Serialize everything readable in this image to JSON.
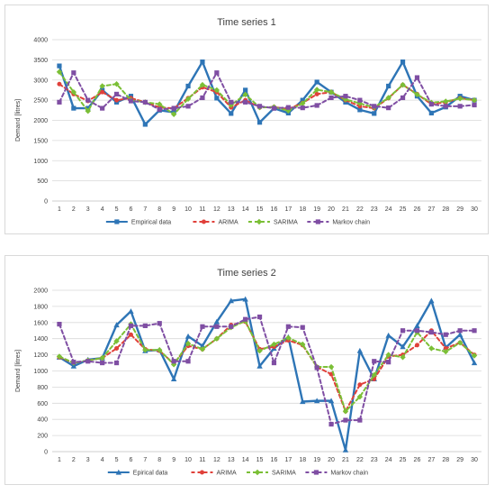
{
  "colors": {
    "empirical": "#2e75b6",
    "arima": "#e0403a",
    "sarima": "#7bbf36",
    "markov": "#7f4ea3",
    "grid": "#d9d9d9",
    "text": "#404040"
  },
  "chart_data": [
    {
      "type": "line",
      "title": "Time series 1",
      "xlabel": "",
      "ylabel": "Demand [litres]",
      "ylim": [
        0,
        4000
      ],
      "yticks": [
        "0",
        "500",
        "1000",
        "1500",
        "2000",
        "2500",
        "3000",
        "3500",
        "4000"
      ],
      "grid": true,
      "legend_position": "bottom",
      "categories": [
        "1",
        "2",
        "3",
        "4",
        "5",
        "6",
        "7",
        "8",
        "9",
        "10",
        "11",
        "12",
        "13",
        "14",
        "15",
        "16",
        "17",
        "18",
        "19",
        "20",
        "21",
        "22",
        "23",
        "24",
        "25",
        "26",
        "27",
        "28",
        "29",
        "30"
      ],
      "series": [
        {
          "name": "Empirical data",
          "color_key": "empirical",
          "marker": "square",
          "dash": false,
          "values": [
            3350,
            2300,
            2300,
            2750,
            2450,
            2600,
            1900,
            2250,
            2200,
            2850,
            3450,
            2550,
            2170,
            2750,
            1950,
            2300,
            2180,
            2500,
            2950,
            2700,
            2450,
            2260,
            2170,
            2850,
            3450,
            2600,
            2180,
            2330,
            2600,
            2500
          ]
        },
        {
          "name": "ARIMA",
          "color_key": "arima",
          "marker": "circle",
          "dash": true,
          "values": [
            2900,
            2650,
            2480,
            2700,
            2500,
            2550,
            2450,
            2320,
            2300,
            2550,
            2820,
            2700,
            2320,
            2500,
            2320,
            2330,
            2280,
            2430,
            2650,
            2700,
            2500,
            2350,
            2300,
            2550,
            2880,
            2650,
            2400,
            2450,
            2550,
            2500
          ]
        },
        {
          "name": "SARIMA",
          "color_key": "sarima",
          "marker": "diamond",
          "dash": true,
          "values": [
            3200,
            2700,
            2230,
            2850,
            2900,
            2500,
            2450,
            2400,
            2150,
            2530,
            2880,
            2750,
            2380,
            2640,
            2320,
            2330,
            2240,
            2420,
            2760,
            2700,
            2520,
            2420,
            2320,
            2560,
            2880,
            2640,
            2440,
            2470,
            2540,
            2500
          ]
        },
        {
          "name": "Markov chain",
          "color_key": "markov",
          "marker": "square",
          "dash": true,
          "values": [
            2450,
            3180,
            2500,
            2300,
            2650,
            2480,
            2450,
            2270,
            2300,
            2350,
            2560,
            3180,
            2450,
            2450,
            2350,
            2300,
            2320,
            2310,
            2370,
            2560,
            2600,
            2500,
            2350,
            2310,
            2560,
            3060,
            2400,
            2350,
            2350,
            2380
          ]
        }
      ]
    },
    {
      "type": "line",
      "title": "Time series 2",
      "xlabel": "",
      "ylabel": "Demand [litres]",
      "ylim": [
        0,
        2000
      ],
      "yticks": [
        "0",
        "200",
        "400",
        "600",
        "800",
        "1000",
        "1200",
        "1400",
        "1600",
        "1800",
        "2000"
      ],
      "grid": true,
      "legend_position": "bottom",
      "categories": [
        "1",
        "2",
        "3",
        "4",
        "5",
        "6",
        "7",
        "8",
        "9",
        "10",
        "11",
        "12",
        "13",
        "14",
        "15",
        "16",
        "17",
        "18",
        "19",
        "20",
        "21",
        "22",
        "23",
        "24",
        "25",
        "26",
        "27",
        "28",
        "29",
        "30"
      ],
      "series": [
        {
          "name": "Epirical data",
          "color_key": "empirical",
          "marker": "triangle",
          "dash": false,
          "values": [
            1170,
            1060,
            1140,
            1160,
            1570,
            1740,
            1250,
            1260,
            900,
            1430,
            1310,
            1610,
            1870,
            1890,
            1060,
            1280,
            1420,
            620,
            630,
            630,
            20,
            1250,
            900,
            1440,
            1300,
            1560,
            1870,
            1290,
            1450,
            1100
          ]
        },
        {
          "name": "ARIMA",
          "color_key": "arima",
          "marker": "circle",
          "dash": true,
          "values": [
            1170,
            1100,
            1130,
            1160,
            1280,
            1450,
            1270,
            1250,
            1090,
            1310,
            1270,
            1400,
            1570,
            1610,
            1270,
            1300,
            1380,
            1320,
            1050,
            960,
            500,
            830,
            900,
            1180,
            1200,
            1320,
            1500,
            1280,
            1350,
            1200
          ]
        },
        {
          "name": "SARIMA",
          "color_key": "sarima",
          "marker": "diamond",
          "dash": true,
          "values": [
            1180,
            1100,
            1130,
            1160,
            1370,
            1580,
            1260,
            1260,
            1080,
            1340,
            1270,
            1400,
            1540,
            1620,
            1250,
            1330,
            1410,
            1330,
            1050,
            1050,
            500,
            680,
            950,
            1200,
            1170,
            1480,
            1280,
            1240,
            1350,
            1190
          ]
        },
        {
          "name": "Markov chain",
          "color_key": "markov",
          "marker": "square",
          "dash": true,
          "values": [
            1580,
            1110,
            1120,
            1100,
            1100,
            1560,
            1560,
            1590,
            1120,
            1120,
            1550,
            1550,
            1550,
            1640,
            1670,
            1100,
            1550,
            1540,
            1040,
            340,
            390,
            390,
            1120,
            1110,
            1500,
            1500,
            1480,
            1450,
            1500,
            1500
          ]
        }
      ]
    }
  ]
}
